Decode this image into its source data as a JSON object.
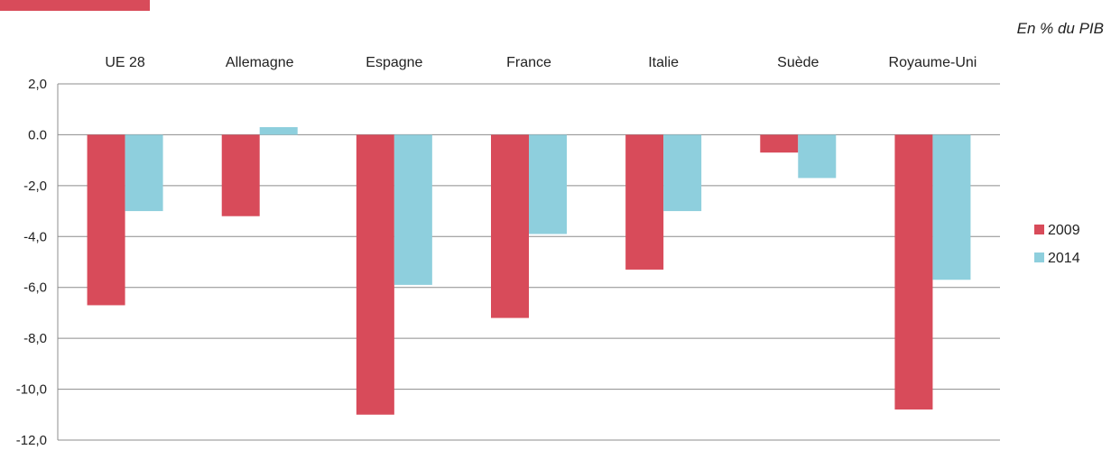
{
  "header": {
    "unit": "En % du PIB"
  },
  "colors": {
    "s2009": "#d84b5a",
    "s2014": "#8ecfdd",
    "grid": "#8c8c8c"
  },
  "chart_data": {
    "type": "bar",
    "title": "",
    "xlabel": "",
    "ylabel": "",
    "categories": [
      "UE 28",
      "Allemagne",
      "Espagne",
      "France",
      "Italie",
      "Suède",
      "Royaume-Uni"
    ],
    "series": [
      {
        "name": "2009",
        "values": [
          -6.7,
          -3.2,
          -11.0,
          -7.2,
          -5.3,
          -0.7,
          -10.8
        ]
      },
      {
        "name": "2014",
        "values": [
          -3.0,
          0.3,
          -5.9,
          -3.9,
          -3.0,
          -1.7,
          -5.7
        ]
      }
    ],
    "yticks": [
      "2,0",
      "0.0",
      "-2,0",
      "-4,0",
      "-6,0",
      "-8,0",
      "-10,0",
      "-12,0"
    ],
    "ylim": [
      -12,
      2
    ],
    "grid": true,
    "legend": "right",
    "category_labels_position": "top"
  }
}
